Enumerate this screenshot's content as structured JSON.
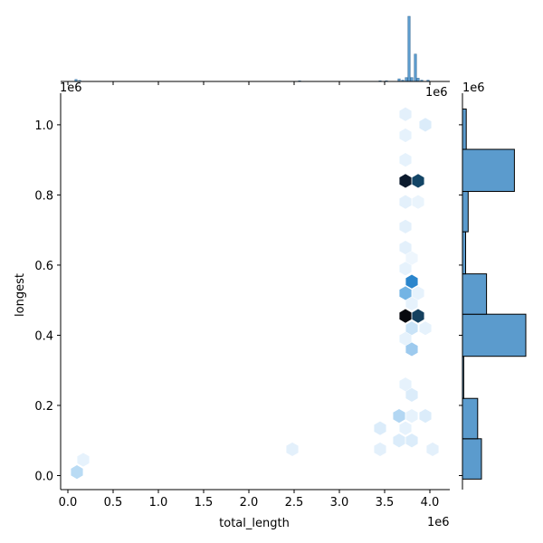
{
  "chart_data": {
    "type": "hexbin-jointplot",
    "xlabel": "total_length",
    "ylabel": "longest",
    "x_offset_label": "1e6",
    "y_offset_label": "1e6",
    "top_offset_label": "1e6",
    "right_offset_label": "1e6",
    "xlim": [
      -0.08,
      4.22
    ],
    "ylim": [
      -0.04,
      1.09
    ],
    "x_ticks": [
      {
        "value": 0.0,
        "label": "0.0"
      },
      {
        "value": 0.5,
        "label": "0.5"
      },
      {
        "value": 1.0,
        "label": "1.0"
      },
      {
        "value": 1.5,
        "label": "1.5"
      },
      {
        "value": 2.0,
        "label": "2.0"
      },
      {
        "value": 2.5,
        "label": "2.5"
      },
      {
        "value": 3.0,
        "label": "3.0"
      },
      {
        "value": 3.5,
        "label": "3.5"
      },
      {
        "value": 4.0,
        "label": "4.0"
      }
    ],
    "y_ticks": [
      {
        "value": 0.0,
        "label": "0.0"
      },
      {
        "value": 0.2,
        "label": "0.2"
      },
      {
        "value": 0.4,
        "label": "0.4"
      },
      {
        "value": 0.6,
        "label": "0.6"
      },
      {
        "value": 0.8,
        "label": "0.8"
      },
      {
        "value": 1.0,
        "label": "1.0"
      }
    ],
    "hexbins": [
      {
        "x": 3.73,
        "y": 0.455,
        "color": "#08090e"
      },
      {
        "x": 3.73,
        "y": 0.84,
        "color": "#0b1a2d"
      },
      {
        "x": 3.87,
        "y": 0.84,
        "color": "#134566"
      },
      {
        "x": 3.87,
        "y": 0.455,
        "color": "#15415f"
      },
      {
        "x": 3.8,
        "y": 0.553,
        "color": "#2a85cc"
      },
      {
        "x": 3.73,
        "y": 0.52,
        "color": "#73b4e4"
      },
      {
        "x": 3.8,
        "y": 0.36,
        "color": "#9dcaee"
      },
      {
        "x": 3.66,
        "y": 0.17,
        "color": "#b3d7f3"
      },
      {
        "x": 0.1,
        "y": 0.01,
        "color": "#b9dbf4"
      },
      {
        "x": 3.8,
        "y": 0.42,
        "color": "#c9e3f7"
      },
      {
        "x": 3.95,
        "y": 1.0,
        "color": "#dbecfa"
      },
      {
        "x": 3.73,
        "y": 1.03,
        "color": "#e3f0fb"
      },
      {
        "x": 3.73,
        "y": 0.97,
        "color": "#e6f2fc"
      },
      {
        "x": 3.73,
        "y": 0.9,
        "color": "#e6f2fc"
      },
      {
        "x": 3.73,
        "y": 0.78,
        "color": "#e3f0fb"
      },
      {
        "x": 3.87,
        "y": 0.78,
        "color": "#eaf4fc"
      },
      {
        "x": 3.73,
        "y": 0.71,
        "color": "#e3f0fb"
      },
      {
        "x": 3.73,
        "y": 0.65,
        "color": "#e3f0fb"
      },
      {
        "x": 3.8,
        "y": 0.62,
        "color": "#eef6fd"
      },
      {
        "x": 3.73,
        "y": 0.59,
        "color": "#e6f2fc"
      },
      {
        "x": 3.87,
        "y": 0.52,
        "color": "#e6f2fc"
      },
      {
        "x": 3.8,
        "y": 0.49,
        "color": "#e6f2fc"
      },
      {
        "x": 3.95,
        "y": 0.42,
        "color": "#e6f2fc"
      },
      {
        "x": 3.73,
        "y": 0.39,
        "color": "#e6f2fc"
      },
      {
        "x": 3.73,
        "y": 0.26,
        "color": "#e6f2fc"
      },
      {
        "x": 3.8,
        "y": 0.23,
        "color": "#dbecfa"
      },
      {
        "x": 3.8,
        "y": 0.17,
        "color": "#e6f2fc"
      },
      {
        "x": 3.95,
        "y": 0.17,
        "color": "#dbecfa"
      },
      {
        "x": 3.45,
        "y": 0.135,
        "color": "#dbecfa"
      },
      {
        "x": 3.73,
        "y": 0.135,
        "color": "#e6f2fc"
      },
      {
        "x": 3.66,
        "y": 0.1,
        "color": "#dbecfa"
      },
      {
        "x": 3.8,
        "y": 0.1,
        "color": "#dbecfa"
      },
      {
        "x": 2.48,
        "y": 0.075,
        "color": "#e3f0fb"
      },
      {
        "x": 3.45,
        "y": 0.075,
        "color": "#e3f0fb"
      },
      {
        "x": 4.03,
        "y": 0.075,
        "color": "#e3f0fb"
      },
      {
        "x": 0.17,
        "y": 0.045,
        "color": "#e6f2fc"
      }
    ],
    "right_marginal": {
      "orientation": "horizontal",
      "bins": [
        {
          "y0": -0.01,
          "y1": 0.105,
          "value": 0.3
        },
        {
          "y0": 0.105,
          "y1": 0.22,
          "value": 0.24
        },
        {
          "y0": 0.22,
          "y1": 0.34,
          "value": 0.02
        },
        {
          "y0": 0.34,
          "y1": 0.46,
          "value": 1.0
        },
        {
          "y0": 0.46,
          "y1": 0.575,
          "value": 0.38
        },
        {
          "y0": 0.575,
          "y1": 0.695,
          "value": 0.05
        },
        {
          "y0": 0.695,
          "y1": 0.81,
          "value": 0.09
        },
        {
          "y0": 0.81,
          "y1": 0.93,
          "value": 0.82
        },
        {
          "y0": 0.93,
          "y1": 1.045,
          "value": 0.06
        }
      ]
    },
    "top_marginal": {
      "orientation": "vertical",
      "bins": [
        {
          "x": 0.09,
          "value": 0.03
        },
        {
          "x": 0.13,
          "value": 0.015
        },
        {
          "x": 2.56,
          "value": 0.01
        },
        {
          "x": 3.45,
          "value": 0.01
        },
        {
          "x": 3.52,
          "value": 0.01
        },
        {
          "x": 3.66,
          "value": 0.04
        },
        {
          "x": 3.7,
          "value": 0.02
        },
        {
          "x": 3.74,
          "value": 0.06
        },
        {
          "x": 3.77,
          "value": 1.0
        },
        {
          "x": 3.8,
          "value": 0.06
        },
        {
          "x": 3.84,
          "value": 0.42
        },
        {
          "x": 3.87,
          "value": 0.05
        },
        {
          "x": 3.91,
          "value": 0.02
        },
        {
          "x": 3.98,
          "value": 0.02
        }
      ]
    }
  },
  "colors": {
    "bar_fill": "#5b9bcd",
    "bar_stroke": "#000000"
  }
}
